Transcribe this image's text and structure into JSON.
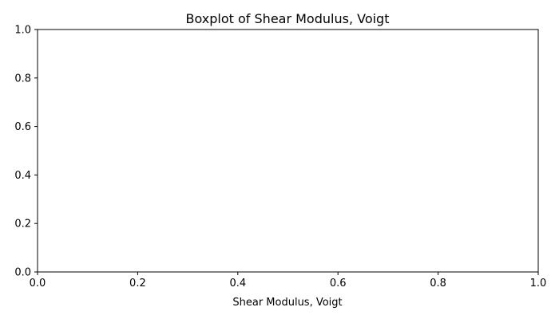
{
  "chart_data": {
    "type": "boxplot",
    "title": "Boxplot of Shear Modulus, Voigt",
    "xlabel": "Shear Modulus, Voigt",
    "ylabel": "",
    "xlim": [
      0.0,
      1.0
    ],
    "ylim": [
      0.0,
      1.0
    ],
    "x_ticks": [
      "0.0",
      "0.2",
      "0.4",
      "0.6",
      "0.8",
      "1.0"
    ],
    "y_ticks": [
      "0.0",
      "0.2",
      "0.4",
      "0.6",
      "0.8",
      "1.0"
    ],
    "grid": false,
    "series": []
  }
}
